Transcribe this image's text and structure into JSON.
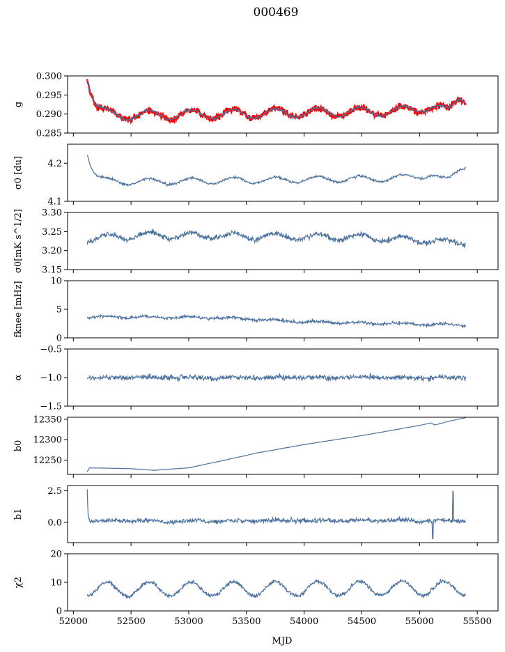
{
  "chart_data": {
    "title": "000469",
    "type": "line",
    "xlabel": "MJD",
    "xlim": [
      51950,
      55680
    ],
    "xticks": [
      52000,
      52500,
      53000,
      53500,
      54000,
      54500,
      55000,
      55500
    ],
    "x_range_data": [
      52120,
      55400
    ],
    "series_color": "#4c72a0",
    "overlay_color": "#ff0000",
    "panels": [
      {
        "id": "g",
        "ylabel": "g",
        "ylim": [
          0.285,
          0.3
        ],
        "yticks": [
          0.285,
          0.29,
          0.295,
          0.3
        ],
        "ytick_labels": [
          "0.285",
          "0.290",
          "0.295",
          "0.300"
        ],
        "overlay": true,
        "start": 0.3005,
        "base": 0.2895,
        "decay": 60,
        "spike": 0,
        "oscillation": {
          "amplitude": 0.0012,
          "period": 365
        },
        "drift": [
          [
            52120,
            0
          ],
          [
            54800,
            0.0012
          ],
          [
            55100,
            0.0025
          ],
          [
            55250,
            0.001
          ],
          [
            55350,
            0.0055
          ],
          [
            55400,
            0.0045
          ]
        ],
        "noise": 0.0004
      },
      {
        "id": "sigma0",
        "ylabel": "σ0 [du]",
        "ylim": [
          4.1,
          4.25
        ],
        "yticks": [
          4.1,
          4.2
        ],
        "ytick_labels": [
          "4.1",
          "4.2"
        ],
        "start": 4.232,
        "base": 4.15,
        "decay": 55,
        "spike": 0,
        "oscillation": {
          "amplitude": 0.008,
          "period": 365
        },
        "drift": [
          [
            52120,
            0
          ],
          [
            54800,
            0.01
          ],
          [
            55100,
            0.02
          ],
          [
            55200,
            0.005
          ],
          [
            55250,
            0.005
          ],
          [
            55350,
            0.04
          ],
          [
            55400,
            0.045
          ]
        ],
        "noise": 0.004
      },
      {
        "id": "sigma0K",
        "ylabel": "σ0[mK s^1/2]",
        "ylim": [
          3.15,
          3.3
        ],
        "yticks": [
          3.15,
          3.2,
          3.25,
          3.3
        ],
        "ytick_labels": [
          "3.15",
          "3.20",
          "3.25",
          "3.30"
        ],
        "start": 3.235,
        "base": 3.235,
        "decay": 1,
        "spike": 0,
        "oscillation": {
          "amplitude": 0.008,
          "period": 365
        },
        "drift": [
          [
            52120,
            -0.005
          ],
          [
            52600,
            0.005
          ],
          [
            54500,
            0.0
          ],
          [
            55400,
            -0.015
          ]
        ],
        "noise": 0.009
      },
      {
        "id": "fknee",
        "ylabel": "fknee [mHz]",
        "ylim": [
          0,
          10
        ],
        "yticks": [
          0,
          5,
          10
        ],
        "ytick_labels": [
          "0",
          "5",
          "10"
        ],
        "start": 3.7,
        "base": 3.7,
        "decay": 1,
        "spike": 0,
        "oscillation": {
          "amplitude": 0.15,
          "period": 365
        },
        "drift": [
          [
            52120,
            0
          ],
          [
            53300,
            -0.2
          ],
          [
            54000,
            -0.9
          ],
          [
            55400,
            -1.5
          ]
        ],
        "noise": 0.35
      },
      {
        "id": "alpha",
        "ylabel": "α",
        "ylim": [
          -1.5,
          -0.5
        ],
        "yticks": [
          -1.5,
          -1.0,
          -0.5
        ],
        "ytick_labels": [
          "−1.5",
          "−1.0",
          "−0.5"
        ],
        "start": -1.0,
        "base": -1.0,
        "decay": 1,
        "spike": 0,
        "oscillation": {
          "amplitude": 0.01,
          "period": 365
        },
        "drift": [
          [
            52120,
            0
          ],
          [
            55400,
            0
          ]
        ],
        "noise": 0.06
      },
      {
        "id": "b0",
        "ylabel": "b0",
        "ylim": [
          12215,
          12355
        ],
        "yticks": [
          12250,
          12300,
          12350
        ],
        "ytick_labels": [
          "12250",
          "12300",
          "12350"
        ],
        "start": 12231,
        "base": 12231,
        "decay": 1,
        "spike": 0,
        "oscillation": {
          "amplitude": 0,
          "period": 365
        },
        "drift": [
          [
            52120,
            -10
          ],
          [
            52140,
            0
          ],
          [
            52500,
            -2
          ],
          [
            52700,
            -6
          ],
          [
            53000,
            0
          ],
          [
            53300,
            18
          ],
          [
            53600,
            37
          ],
          [
            54000,
            57
          ],
          [
            54500,
            79
          ],
          [
            55000,
            104
          ],
          [
            55100,
            110
          ],
          [
            55130,
            105
          ],
          [
            55250,
            114
          ],
          [
            55400,
            123
          ]
        ],
        "noise": 0.4
      },
      {
        "id": "b1",
        "ylabel": "b1",
        "ylim": [
          -1.6,
          2.9
        ],
        "yticks": [
          0.0,
          2.5
        ],
        "ytick_labels": [
          "0.0",
          "2.5"
        ],
        "start": 2.7,
        "base": 0.1,
        "decay": 6,
        "spike": 1,
        "oscillation": {
          "amplitude": 0.05,
          "period": 365
        },
        "drift": [
          [
            52120,
            0
          ],
          [
            55400,
            0.05
          ]
        ],
        "noise": 0.22
      },
      {
        "id": "chi2",
        "ylabel": "χ2",
        "ylim": [
          0,
          20
        ],
        "yticks": [
          0,
          10,
          20
        ],
        "ytick_labels": [
          "0",
          "10",
          "20"
        ],
        "start": 7.5,
        "base": 7.5,
        "decay": 1,
        "spike": 0,
        "oscillation": {
          "amplitude": 2.5,
          "period": 365
        },
        "drift": [
          [
            52120,
            0
          ],
          [
            55400,
            0.5
          ]
        ],
        "noise": 0.9
      }
    ]
  }
}
